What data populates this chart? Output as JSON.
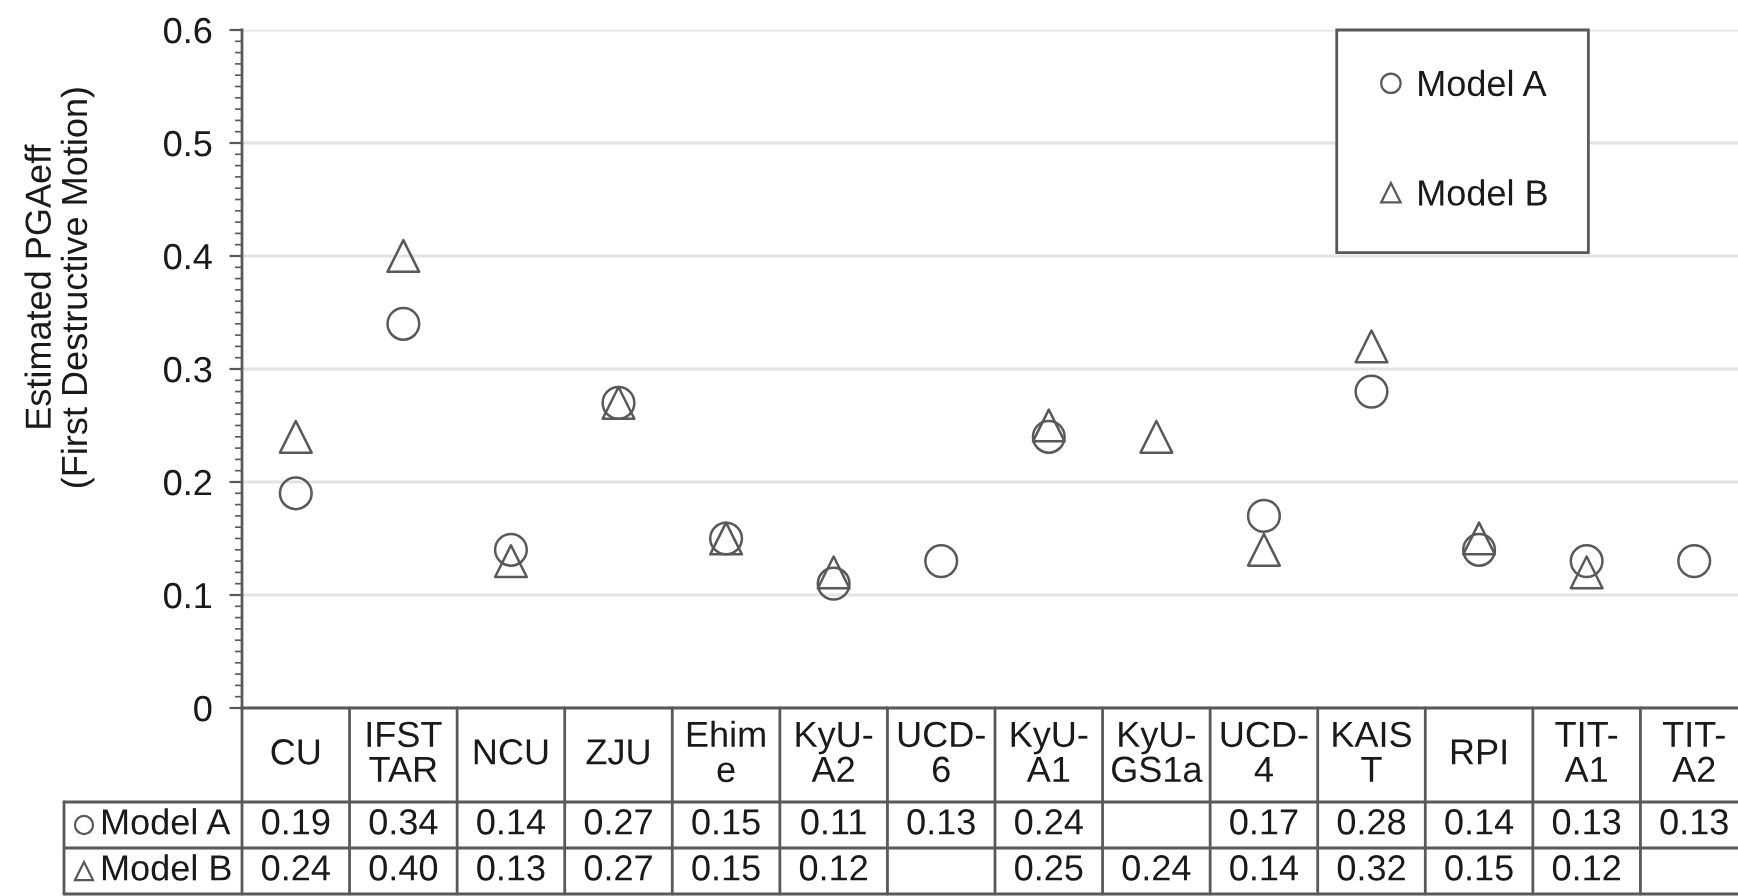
{
  "chart_data": {
    "type": "scatter",
    "ylabel": "Estimated PGAeff\n(First Destructive Motion)",
    "categories": [
      "CU",
      "IFST\nTAR",
      "NCU",
      "ZJU",
      "Ehim\ne",
      "KyU-\nA2",
      "UCD-\n6",
      "KyU-\nA1",
      "KyU-\nGS1a",
      "UCD-\n4",
      "KAIS\nT",
      "RPI",
      "TIT-\nA1",
      "TIT-\nA2"
    ],
    "series": [
      {
        "name": "Model A",
        "color": "#595959",
        "marker": "circle",
        "values": [
          0.19,
          0.34,
          0.14,
          0.27,
          0.15,
          0.11,
          0.13,
          0.24,
          null,
          0.17,
          0.28,
          0.14,
          0.13,
          0.13
        ],
        "value_labels": [
          "0.19",
          "0.34",
          "0.14",
          "0.27",
          "0.15",
          "0.11",
          "0.13",
          "0.24",
          null,
          "0.17",
          "0.28",
          "0.14",
          "0.13",
          "0.13"
        ]
      },
      {
        "name": "Model B",
        "color": "#595959",
        "marker": "triangle",
        "values": [
          0.24,
          0.4,
          0.13,
          0.27,
          0.15,
          0.12,
          null,
          0.25,
          0.24,
          0.14,
          0.32,
          0.15,
          0.12,
          null
        ],
        "value_labels": [
          "0.24",
          "0.40",
          "0.13",
          "0.27",
          "0.15",
          "0.12",
          null,
          "0.25",
          "0.24",
          "0.14",
          "0.32",
          "0.15",
          "0.12",
          null
        ]
      }
    ],
    "ylim": [
      0,
      0.6
    ],
    "yticks": [
      0,
      0.1,
      0.2,
      0.3,
      0.4,
      0.5,
      0.6
    ],
    "grid": "y",
    "legend": "top right"
  }
}
